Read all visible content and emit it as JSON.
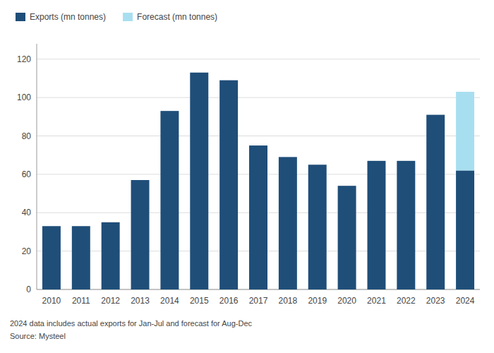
{
  "chart_data": {
    "type": "bar",
    "stacked": true,
    "categories": [
      "2010",
      "2011",
      "2012",
      "2013",
      "2014",
      "2015",
      "2016",
      "2017",
      "2018",
      "2019",
      "2020",
      "2021",
      "2022",
      "2023",
      "2024"
    ],
    "series": [
      {
        "name": "Exports (mn tonnes)",
        "color": "#1f4e79",
        "values": [
          33,
          33,
          35,
          57,
          93,
          113,
          109,
          75,
          69,
          65,
          54,
          67,
          67,
          91,
          62
        ]
      },
      {
        "name": "Forecast (mn tonnes)",
        "color": "#a8dff0",
        "values": [
          0,
          0,
          0,
          0,
          0,
          0,
          0,
          0,
          0,
          0,
          0,
          0,
          0,
          0,
          41
        ]
      }
    ],
    "ylim": [
      0,
      128
    ],
    "yticks": [
      0,
      20,
      40,
      60,
      80,
      100,
      120
    ],
    "grid": true,
    "legend": "top-left",
    "annotations": [
      "2024 data includes actual exports for Jan-Jul and forecast for Aug-Dec",
      "Source: Mysteel"
    ]
  }
}
